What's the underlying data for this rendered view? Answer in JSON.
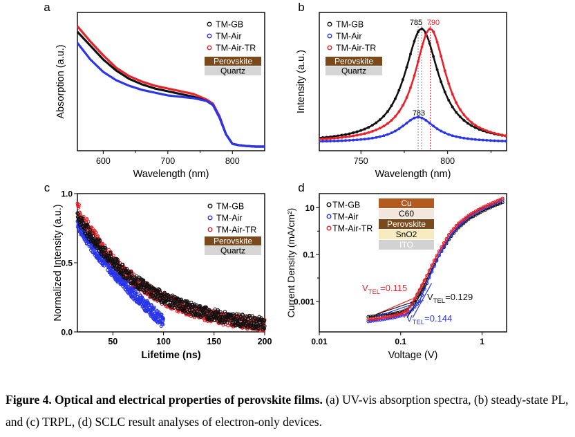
{
  "chart_data": [
    {
      "panel": "a",
      "type": "line",
      "xlabel": "Wavelength (nm)",
      "ylabel": "Absorption (a.u.)",
      "xlim": [
        560,
        850
      ],
      "ylim": [
        0,
        1
      ],
      "xticks": [
        "600",
        "700",
        "800"
      ],
      "legend": [
        "TM-GB",
        "TM-Air",
        "TM-Air-TR"
      ],
      "stack": [
        "Perovskite",
        "Quartz"
      ],
      "x": [
        560,
        580,
        600,
        620,
        640,
        660,
        680,
        700,
        720,
        740,
        760,
        770,
        780,
        790,
        800,
        810,
        820,
        835,
        850
      ],
      "series": [
        {
          "name": "TM-GB",
          "values": [
            0.86,
            0.76,
            0.66,
            0.58,
            0.52,
            0.48,
            0.45,
            0.43,
            0.41,
            0.39,
            0.36,
            0.33,
            0.24,
            0.12,
            0.05,
            0.04,
            0.035,
            0.03,
            0.03
          ]
        },
        {
          "name": "TM-Air",
          "values": [
            0.78,
            0.66,
            0.57,
            0.51,
            0.47,
            0.44,
            0.42,
            0.4,
            0.39,
            0.38,
            0.36,
            0.33,
            0.24,
            0.12,
            0.05,
            0.04,
            0.035,
            0.03,
            0.03
          ]
        },
        {
          "name": "TM-Air-TR",
          "values": [
            0.9,
            0.79,
            0.69,
            0.6,
            0.54,
            0.5,
            0.47,
            0.45,
            0.43,
            0.41,
            0.37,
            0.34,
            0.25,
            0.12,
            0.05,
            0.04,
            0.035,
            0.03,
            0.03
          ]
        }
      ]
    },
    {
      "panel": "b",
      "type": "line",
      "xlabel": "Wavelength (nm)",
      "ylabel": "Intensity (a.u.)",
      "xlim": [
        726,
        834
      ],
      "ylim": [
        0,
        1
      ],
      "xticks": [
        "750",
        "800"
      ],
      "legend": [
        "TM-GB",
        "TM-Air",
        "TM-Air-TR"
      ],
      "stack": [
        "Perovskite",
        "Quartz"
      ],
      "series": [
        {
          "name": "TM-GB",
          "peak": 785,
          "height": 0.99,
          "width": 24
        },
        {
          "name": "TM-Air",
          "peak": 783,
          "height": 0.22,
          "width": 24
        },
        {
          "name": "TM-Air-TR",
          "peak": 790,
          "height": 0.99,
          "width": 22
        }
      ],
      "peak_labels": [
        "785",
        "790",
        "783"
      ]
    },
    {
      "panel": "c",
      "type": "scatter",
      "xlabel": "Lifetime (ns)",
      "ylabel": "Normalized Intensity (a.u.)",
      "xlim": [
        15,
        200
      ],
      "ylim": [
        0,
        1.0
      ],
      "xticks": [
        "50",
        "100",
        "150",
        "200"
      ],
      "yticks": [
        "0.0",
        "0.5",
        "1.0"
      ],
      "legend": [
        "TM-GB",
        "TM-Air",
        "TM-Air-TR"
      ],
      "stack": [
        "Perovskite",
        "Quartz"
      ],
      "series": [
        {
          "name": "TM-GB",
          "x_range": [
            15,
            200
          ],
          "y_start": 0.84,
          "y_end": 0.06
        },
        {
          "name": "TM-Air",
          "x_range": [
            15,
            100
          ],
          "y_start": 0.8,
          "y_end": 0.07
        },
        {
          "name": "TM-Air-TR",
          "x_range": [
            15,
            200
          ],
          "y_start": 0.9,
          "y_end": 0.05
        }
      ]
    },
    {
      "panel": "d",
      "type": "line",
      "xscale": "log",
      "yscale": "log",
      "xlabel": "Voltage (V)",
      "ylabel": "Current Density (mA/cm²)",
      "xlim": [
        0.01,
        2
      ],
      "ylim": [
        5e-05,
        40
      ],
      "xticks": [
        "0.01",
        "0.1",
        "1"
      ],
      "yticks": [
        "0.001",
        "0.1",
        "10"
      ],
      "legend": [
        "TM-GB",
        "TM-Air",
        "TM-Air-TR"
      ],
      "stack": [
        "Cu",
        "C60",
        "Perovskite",
        "SnO2",
        "ITO"
      ],
      "series": [
        {
          "name": "TM-GB",
          "x": [
            0.04,
            0.06,
            0.08,
            0.1,
            0.12,
            0.14,
            0.17,
            0.2,
            0.25,
            0.3,
            0.4,
            0.5,
            0.7,
            1.0,
            1.4,
            1.8
          ],
          "values": [
            0.00022,
            0.00026,
            0.0003,
            0.00035,
            0.00045,
            0.0008,
            0.002,
            0.006,
            0.03,
            0.1,
            0.5,
            1.3,
            3.5,
            7,
            12,
            17
          ]
        },
        {
          "name": "TM-Air",
          "x": [
            0.04,
            0.06,
            0.08,
            0.1,
            0.12,
            0.14,
            0.17,
            0.2,
            0.25,
            0.3,
            0.4,
            0.5,
            0.7,
            1.0,
            1.4,
            1.8
          ],
          "values": [
            0.00014,
            0.00017,
            0.0002,
            0.00024,
            0.0003,
            0.00045,
            0.001,
            0.004,
            0.025,
            0.1,
            0.6,
            1.6,
            4.5,
            9,
            15,
            22
          ]
        },
        {
          "name": "TM-Air-TR",
          "x": [
            0.04,
            0.06,
            0.08,
            0.1,
            0.12,
            0.14,
            0.17,
            0.2,
            0.25,
            0.3,
            0.4,
            0.5,
            0.7,
            1.0,
            1.4,
            1.8
          ],
          "values": [
            0.00017,
            0.0002,
            0.00024,
            0.00029,
            0.0004,
            0.0009,
            0.003,
            0.009,
            0.045,
            0.15,
            0.8,
            2,
            5,
            10,
            17,
            25
          ]
        }
      ],
      "annotations": [
        {
          "text": "V",
          "sub": "TEL",
          "value": "=0.115",
          "color": "#e8222a"
        },
        {
          "text": "V",
          "sub": "TEL",
          "value": "=0.129",
          "color": "#111111"
        },
        {
          "text": "V",
          "sub": "TEL",
          "value": "=0.144",
          "color": "#2a36e8"
        }
      ]
    }
  ],
  "panel_letters": [
    "a",
    "b",
    "c",
    "d"
  ],
  "colors": {
    "TM-GB": "#111111",
    "TM-Air": "#2a36e8",
    "TM-Air-TR": "#e8222a"
  },
  "caption": {
    "bold": "Figure 4. Optical and electrical properties of perovskite films.",
    "text": " (a) UV-vis absorption spectra, (b) steady-state PL, and (c) TRPL, (d) SCLC result analyses of electron-only devices."
  }
}
